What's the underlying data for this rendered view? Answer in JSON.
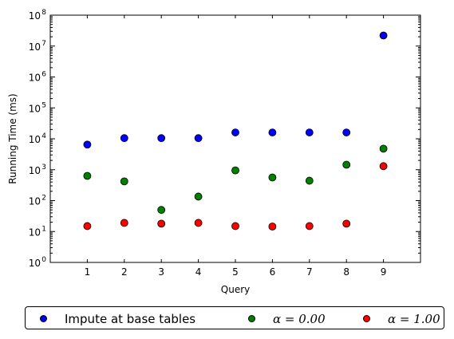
{
  "chart_data": {
    "type": "scatter",
    "title": "",
    "xlabel": "Query",
    "ylabel": "Running Time (ms)",
    "yscale": "log",
    "xlim": [
      0,
      10
    ],
    "ylim": [
      1,
      100000000
    ],
    "x_ticks": [
      1,
      2,
      3,
      4,
      5,
      6,
      7,
      8,
      9
    ],
    "x_tick_labels": [
      "1",
      "2",
      "3",
      "4",
      "5",
      "6",
      "7",
      "8",
      "9"
    ],
    "y_ticks": [
      1,
      10,
      100,
      1000,
      10000,
      100000,
      1000000,
      10000000,
      100000000
    ],
    "y_tick_bases": [
      "10",
      "10",
      "10",
      "10",
      "10",
      "10",
      "10",
      "10",
      "10"
    ],
    "y_tick_exponents": [
      "0",
      "1",
      "2",
      "3",
      "4",
      "5",
      "6",
      "7",
      "8"
    ],
    "grid": false,
    "legend_position": "bottom, outside",
    "series": [
      {
        "name": "Impute at base tables",
        "color": "#0000ff",
        "x": [
          1,
          2,
          3,
          4,
          5,
          6,
          7,
          8,
          9
        ],
        "y": [
          6500,
          10500,
          10500,
          10500,
          16000,
          16000,
          16000,
          16000,
          22000000
        ]
      },
      {
        "name": "α = 0.00",
        "color": "#008000",
        "x": [
          1,
          2,
          3,
          4,
          5,
          6,
          7,
          8,
          9
        ],
        "y": [
          630,
          420,
          50,
          135,
          950,
          560,
          440,
          1450,
          4800
        ]
      },
      {
        "name": "α = 1.00",
        "color": "#ff0000",
        "x": [
          1,
          2,
          3,
          4,
          5,
          6,
          7,
          8,
          9
        ],
        "y": [
          15,
          19,
          18,
          19,
          15,
          14.5,
          15,
          18,
          1300
        ]
      }
    ]
  },
  "legend": {
    "entries": [
      {
        "label": "Impute at base tables",
        "color": "#0000ff"
      },
      {
        "label": "α = 0.00",
        "color": "#008000"
      },
      {
        "label": "α = 1.00",
        "color": "#ff0000"
      }
    ]
  }
}
